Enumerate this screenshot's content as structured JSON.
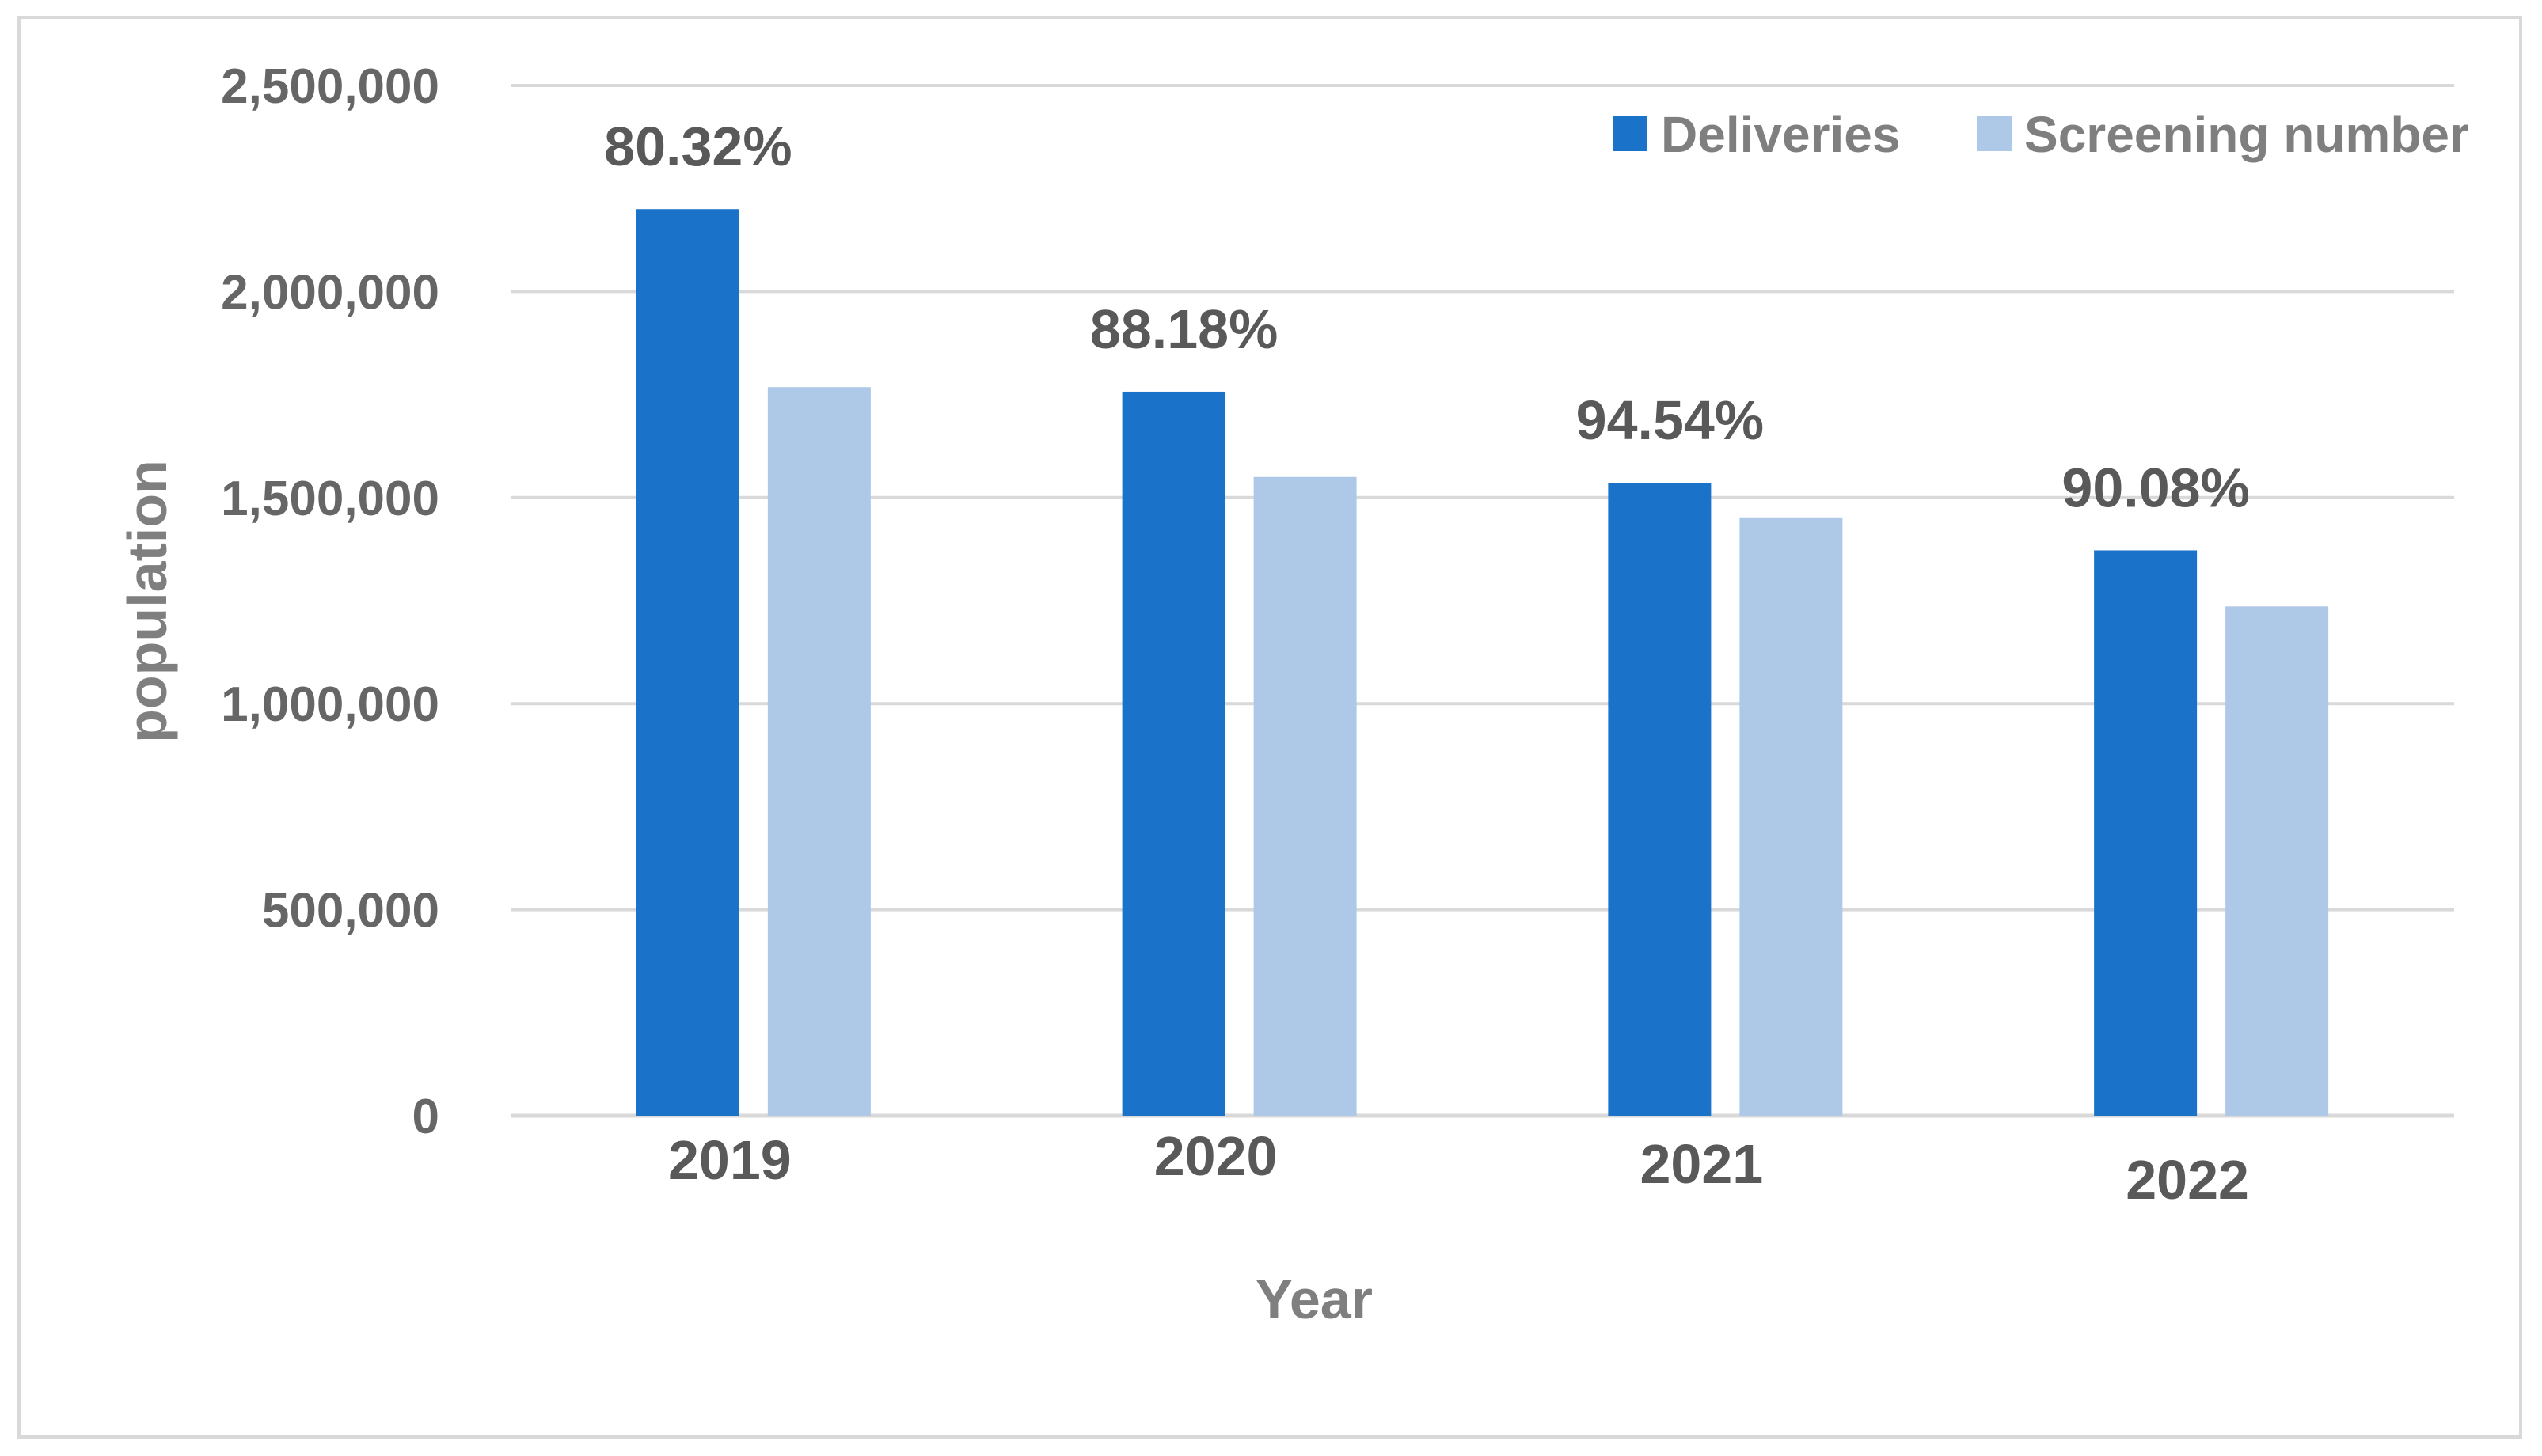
{
  "chart_data": {
    "type": "bar",
    "title": "",
    "xlabel": "Year",
    "ylabel": "population",
    "categories": [
      "2019",
      "2020",
      "2021",
      "2022"
    ],
    "series": [
      {
        "name": "Deliveries",
        "color": "#1a73c8",
        "values": [
          2200000,
          1757000,
          1536000,
          1372000
        ]
      },
      {
        "name": "Screening number",
        "color": "#aec9e8",
        "values": [
          1768000,
          1550000,
          1452000,
          1236000
        ]
      }
    ],
    "data_labels": [
      "80.32%",
      "88.18%",
      "94.54%",
      "90.08%"
    ],
    "ylim": [
      0,
      2500000
    ],
    "yticks": [
      0,
      500000,
      1000000,
      1500000,
      2000000,
      2500000
    ],
    "ytick_labels": [
      "0",
      "500,000",
      "1,000,000",
      "1,500,000",
      "2,000,000",
      "2,500,000"
    ],
    "grid": true,
    "gridline_color": "#d9d9d9",
    "legend_position": "top-right"
  }
}
